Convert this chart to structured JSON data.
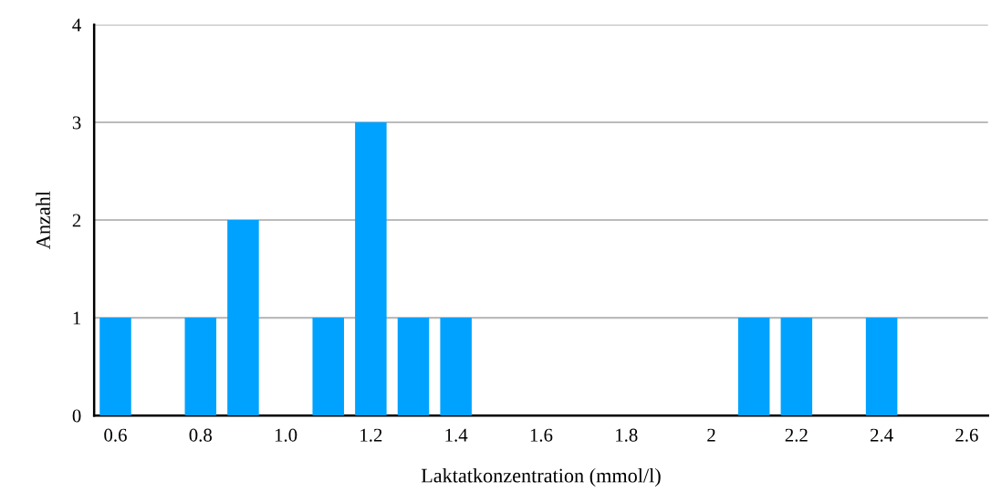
{
  "chart_data": {
    "type": "bar",
    "xlabel": "Laktatkonzentration (mmol/l)",
    "ylabel": "Anzahl",
    "categories": [
      "0.6",
      null,
      "0.8",
      null,
      "1.0",
      null,
      "1.2",
      null,
      "1.4",
      null,
      "1.6",
      null,
      "1.8",
      null,
      "2",
      null,
      "2.2",
      null,
      "2.4",
      null,
      "2.6"
    ],
    "values": [
      1,
      0,
      1,
      2,
      0,
      1,
      3,
      1,
      1,
      0,
      0,
      0,
      0,
      0,
      0,
      1,
      1,
      0,
      1,
      0,
      0
    ],
    "color": "#00a2ff",
    "ylim": [
      0,
      4
    ],
    "yticks": [
      0,
      1,
      2,
      3,
      4
    ],
    "grid": "y"
  }
}
